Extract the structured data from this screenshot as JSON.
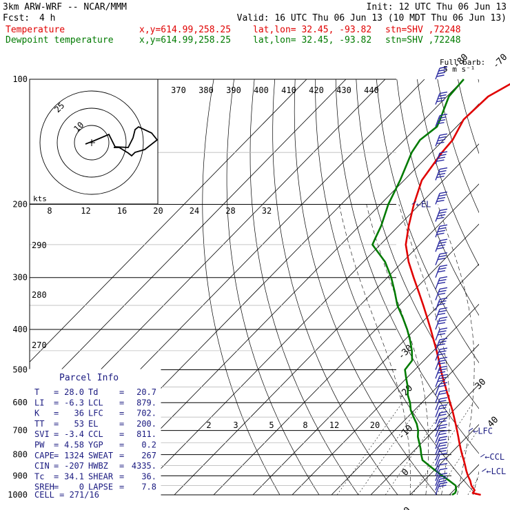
{
  "header": {
    "model": "3km ARW-WRF -- NCAR/MMM",
    "init": "Init: 12 UTC Thu 06 Jun 13",
    "fcst_label": "Fcst:",
    "fcst_value": "4 h",
    "valid": "Valid: 16 UTC Thu 06 Jun 13 (10 MDT Thu 06 Jun 13)",
    "temp_line": {
      "label": "Temperature",
      "xy": "x,y=614.99,258.25",
      "latlon": "lat,lon= 32.45, -93.82",
      "stn": "stn=SHV ,72248",
      "color": "#e00000"
    },
    "dew_line": {
      "label": "Dewpoint temperature",
      "xy": "x,y=614.99,258.25",
      "latlon": "lat,lon= 32.45, -93.82",
      "stn": "stn=SHV ,72248",
      "color": "#007a00"
    },
    "barb_legend_line1": "Full barb:",
    "barb_legend_line2": "5 m s⁻¹"
  },
  "chart_data": {
    "type": "line",
    "chart_kind": "skew-T log-p sounding",
    "yscale": "log",
    "ylim": [
      1000,
      100
    ],
    "pressure_labels": [
      "100",
      "200",
      "300",
      "400",
      "500",
      "600",
      "700",
      "800",
      "900",
      "1000"
    ],
    "temp_ticks_top": [
      "-80",
      "-70",
      "-60",
      "-50",
      "-40"
    ],
    "temp_ticks_right": [
      "-30",
      "-20",
      "-10",
      "0",
      "10"
    ],
    "temp_ticks_edge": [
      "30",
      "40"
    ],
    "theta_labels_top": [
      "370",
      "380",
      "390",
      "400",
      "410",
      "420",
      "430",
      "440"
    ],
    "theta_labels_left": [
      "290",
      "280",
      "270"
    ],
    "mixing_ratio_labels": [
      "2",
      "3",
      "5",
      "8",
      "12",
      "20"
    ],
    "hodograph": {
      "units": "kts",
      "ring_labels": [
        "25",
        "10"
      ],
      "speed_labels": [
        "8",
        "12",
        "16",
        "20",
        "24",
        "28",
        "32"
      ]
    },
    "markers": {
      "el": "EL",
      "lfc": "LFC",
      "ccl": "CCL",
      "lcl": "LCL"
    },
    "series": [
      {
        "name": "Temperature",
        "color": "#e00000",
        "p": [
          1000,
          990,
          975,
          950,
          925,
          900,
          875,
          850,
          825,
          800,
          775,
          750,
          725,
          700,
          675,
          650,
          625,
          600,
          575,
          550,
          525,
          500,
          475,
          450,
          425,
          400,
          375,
          350,
          325,
          300,
          275,
          250,
          225,
          200,
          175,
          150,
          140,
          125,
          110,
          100
        ],
        "t": [
          28.0,
          25.5,
          25.3,
          23.3,
          21.8,
          20.0,
          18.3,
          16.7,
          15.0,
          13.2,
          11.4,
          9.6,
          7.8,
          5.9,
          3.9,
          1.8,
          -0.4,
          -2.8,
          -5.3,
          -7.9,
          -10.6,
          -13.4,
          -16.2,
          -19.2,
          -22.5,
          -26.0,
          -29.8,
          -33.9,
          -38.4,
          -43.3,
          -48.5,
          -53.5,
          -57.5,
          -61.5,
          -65.5,
          -67.3,
          -67.7,
          -70.0,
          -69.5,
          -66.0
        ]
      },
      {
        "name": "Dewpoint temperature",
        "color": "#007a00",
        "p": [
          1000,
          990,
          975,
          950,
          925,
          900,
          875,
          850,
          825,
          800,
          775,
          750,
          725,
          700,
          675,
          650,
          625,
          600,
          575,
          550,
          525,
          500,
          475,
          450,
          425,
          400,
          375,
          350,
          325,
          300,
          275,
          250,
          240,
          225,
          200,
          175,
          150,
          140,
          130,
          125,
          110,
          100
        ],
        "t": [
          20.7,
          21.0,
          20.6,
          19.3,
          16.5,
          13.5,
          10.5,
          7.5,
          4.5,
          2.8,
          1.2,
          -0.6,
          -2.5,
          -4.0,
          -6.0,
          -8.5,
          -11.0,
          -13.0,
          -15.5,
          -17.5,
          -20.0,
          -22.5,
          -23.0,
          -25.5,
          -28.5,
          -32.0,
          -36.0,
          -40.5,
          -44.5,
          -49.0,
          -54.5,
          -62.0,
          -63.0,
          -64.5,
          -68.0,
          -71.0,
          -75.0,
          -76.0,
          -75.0,
          -76.0,
          -79.5,
          -80.0
        ]
      }
    ],
    "wind_barbs": {
      "note": "Full barb: 5 m s-1",
      "p": [
        100,
        115,
        130,
        145,
        160,
        175,
        200,
        220,
        240,
        260,
        280,
        300,
        320,
        340,
        360,
        380,
        400,
        425,
        450,
        475,
        500,
        525,
        550,
        575,
        600,
        625,
        650,
        675,
        700,
        725,
        750,
        775,
        800,
        825,
        850,
        875,
        900,
        925,
        950,
        975,
        1000
      ],
      "speed_ms": [
        20,
        20,
        20,
        20,
        20,
        20,
        20,
        20,
        20,
        20,
        15,
        15,
        15,
        15,
        15,
        15,
        15,
        15,
        15,
        15,
        15,
        15,
        15,
        10,
        10,
        10,
        10,
        10,
        10,
        10,
        10,
        10,
        10,
        10,
        5,
        5,
        5,
        5,
        10,
        10,
        10
      ]
    }
  },
  "parcel_info": {
    "title": "Parcel Info",
    "rows": [
      [
        "T",
        "28.0",
        "Td",
        "20.7"
      ],
      [
        "LI",
        "-6.3",
        "LCL",
        "879."
      ],
      [
        "K",
        "36",
        "LFC",
        "702."
      ],
      [
        "TT",
        "53",
        "EL",
        "200."
      ],
      [
        "SVI",
        "-3.4",
        "CCL",
        "811."
      ],
      [
        "PW",
        "4.58",
        "YGP",
        "0.2"
      ],
      [
        "CAPE",
        "1324",
        "SWEAT",
        "267"
      ],
      [
        "CIN",
        "-207",
        "HWBZ",
        "4335."
      ],
      [
        "Tc",
        "34.1",
        "SHEAR",
        "36."
      ],
      [
        "SREH",
        "0",
        "LAPSE",
        "7.8"
      ]
    ],
    "cell": "CELL = 271/16"
  }
}
